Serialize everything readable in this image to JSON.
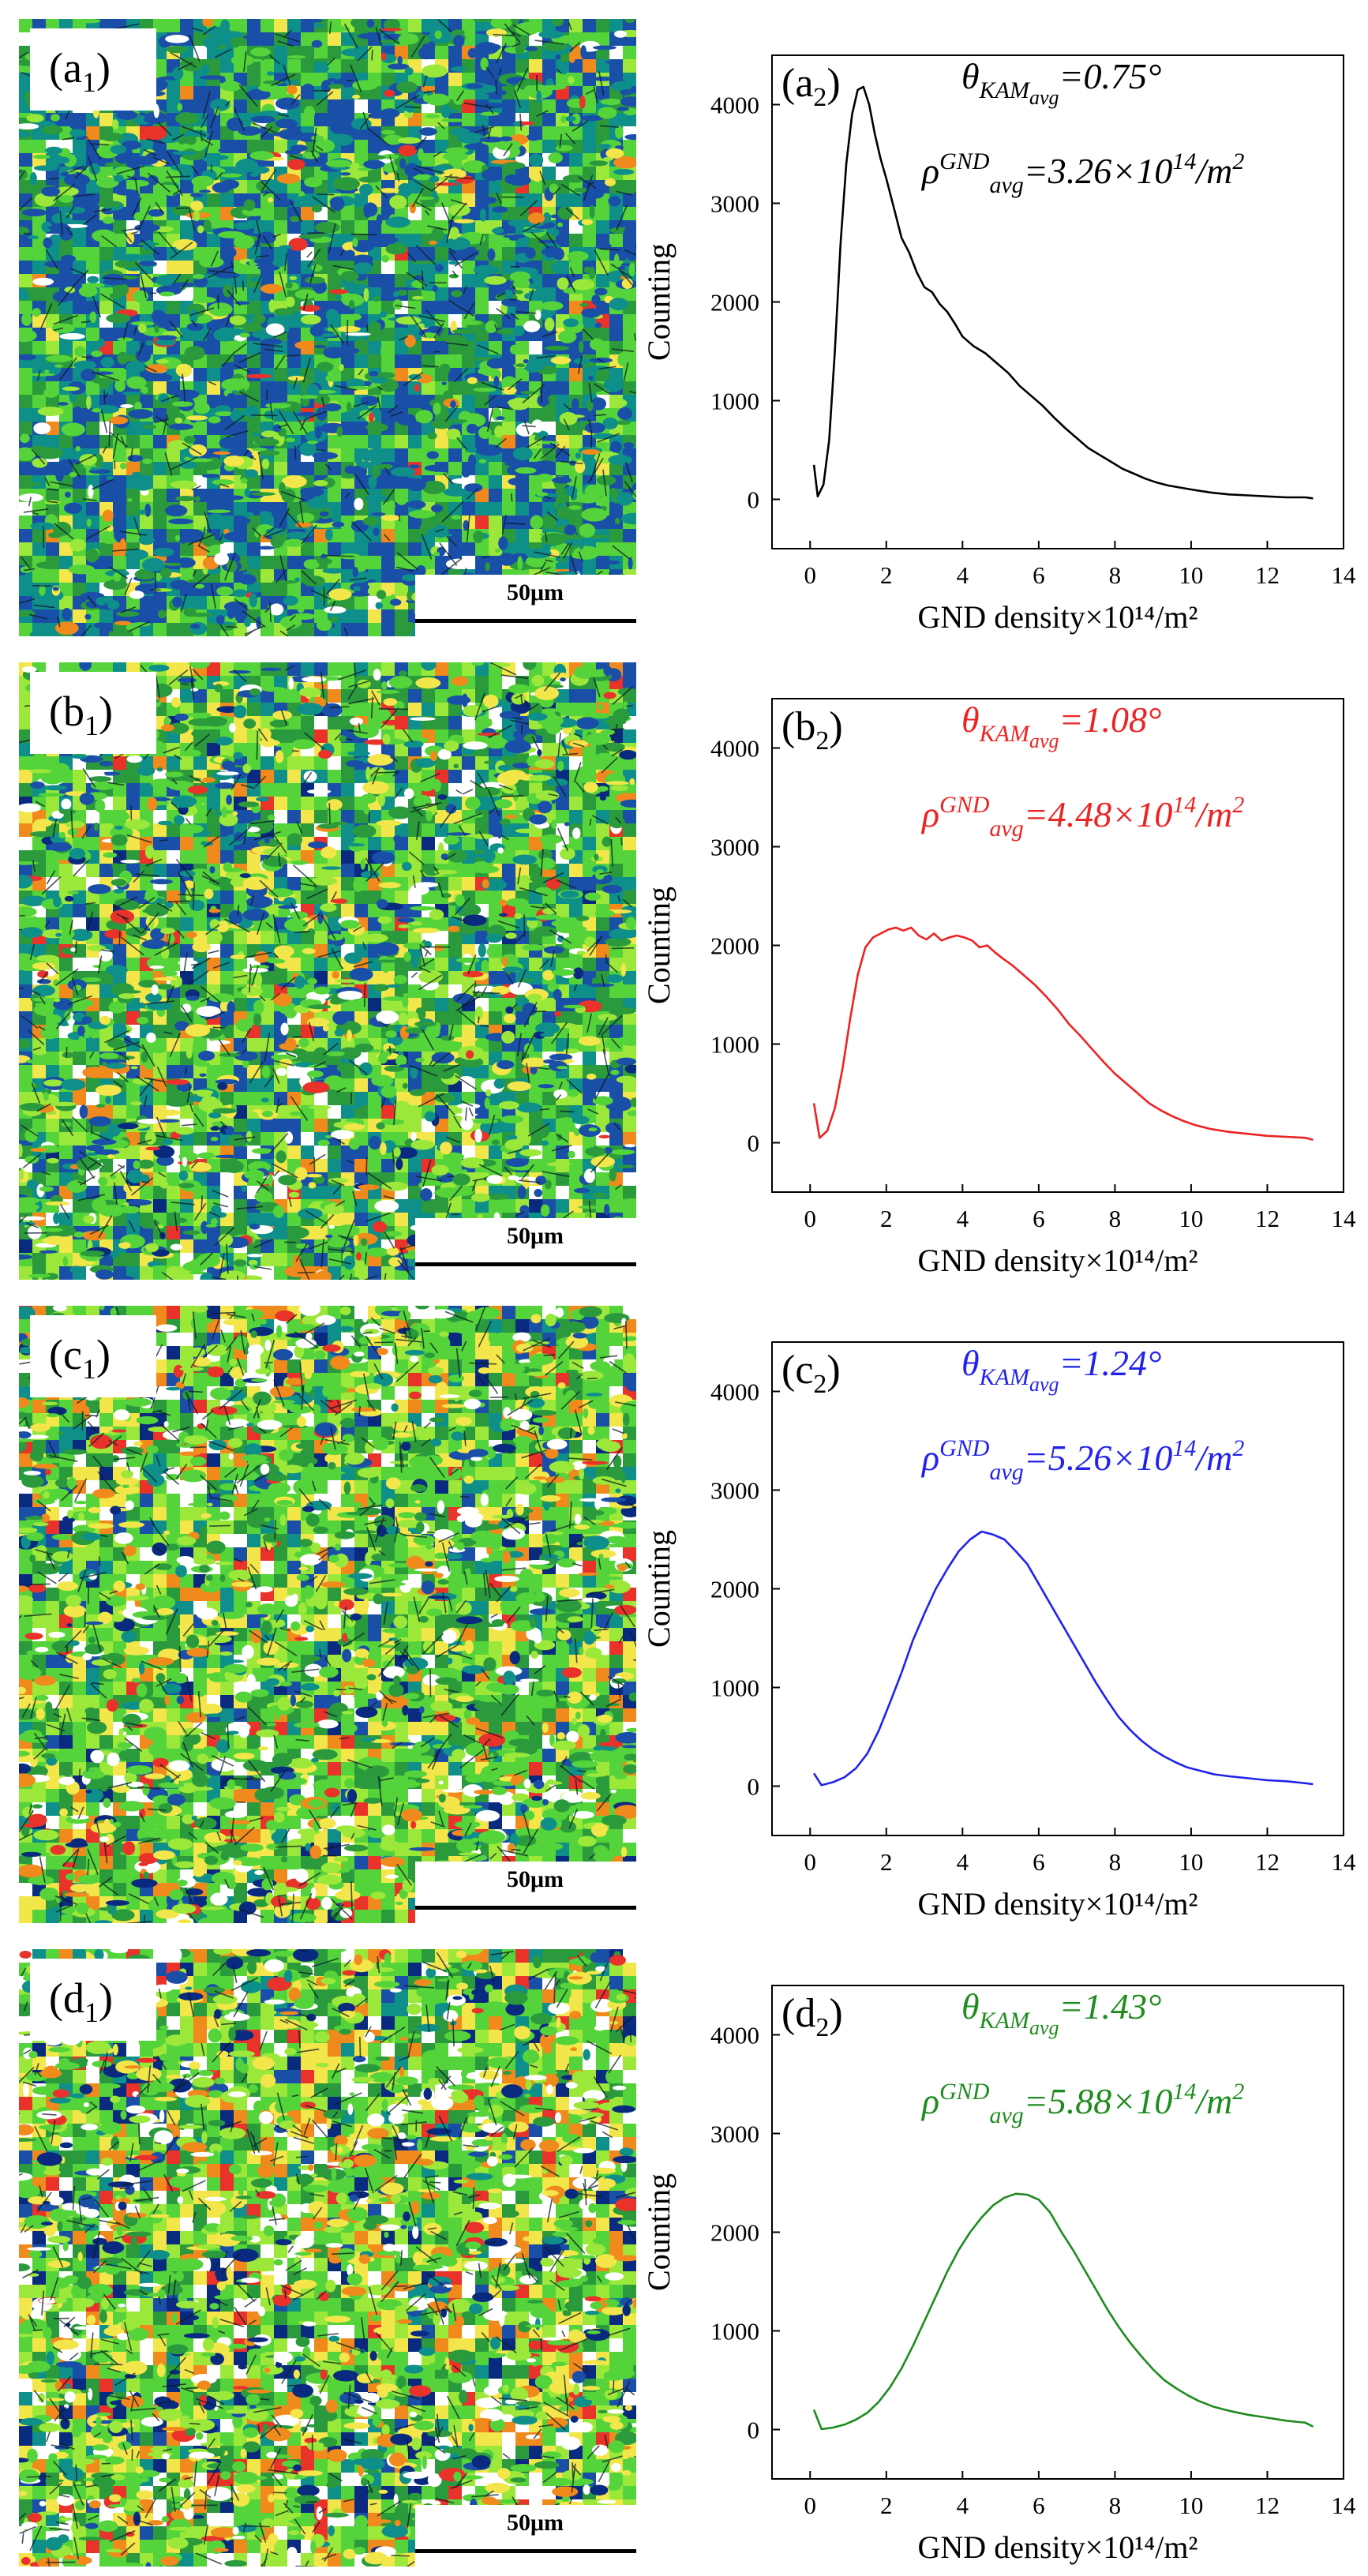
{
  "panels": [
    {
      "map_label": {
        "letter": "(a",
        "sub": "1",
        "close": ")"
      },
      "scale_bar": "50μm",
      "map_palette": {
        "base": "#2ec43a",
        "colors": [
          "#1a4fa8",
          "#0f8f8a",
          "#2a9a3c",
          "#55d33a",
          "#9be83a",
          "#f2e64a",
          "#f08a1c",
          "#e8322a",
          "#ffffff",
          "#0a2a80"
        ],
        "weights": [
          26,
          20,
          18,
          20,
          6,
          4,
          2,
          1,
          3,
          0
        ]
      },
      "chart_data": {
        "type": "line",
        "panel_label": {
          "letter": "(a",
          "sub": "2",
          "close": ")"
        },
        "color": "#000000",
        "xlabel": "GND density×10¹⁴/m²",
        "ylabel": "Counting",
        "xlim": [
          -1,
          14
        ],
        "ylim": [
          -500,
          4500
        ],
        "xticks": [
          0,
          2,
          4,
          6,
          8,
          10,
          12,
          14
        ],
        "yticks": [
          0,
          1000,
          2000,
          3000,
          4000
        ],
        "annotation_kam": {
          "sym": "θ",
          "sub": "KAM",
          "subsub": "avg",
          "value": "=0.75°"
        },
        "annotation_gnd": {
          "sym": "ρ",
          "sup": "GND",
          "sub": "avg",
          "value": "=3.26×10",
          "exp": "14",
          "unit": "/m",
          "unit_exp": "2"
        },
        "x": [
          0.1,
          0.2,
          0.35,
          0.5,
          0.65,
          0.8,
          0.95,
          1.1,
          1.25,
          1.4,
          1.55,
          1.7,
          1.85,
          2.0,
          2.2,
          2.4,
          2.6,
          2.8,
          3.0,
          3.2,
          3.4,
          3.6,
          3.8,
          4.0,
          4.3,
          4.6,
          4.9,
          5.2,
          5.5,
          5.8,
          6.1,
          6.4,
          6.7,
          7.0,
          7.3,
          7.6,
          7.9,
          8.2,
          8.5,
          8.8,
          9.1,
          9.4,
          9.7,
          10.0,
          10.5,
          11.0,
          11.5,
          12.0,
          12.5,
          13.0,
          13.2
        ],
        "y": [
          350,
          30,
          150,
          600,
          1500,
          2600,
          3400,
          3900,
          4150,
          4180,
          4000,
          3700,
          3450,
          3250,
          2950,
          2650,
          2500,
          2300,
          2150,
          2100,
          1980,
          1900,
          1780,
          1650,
          1550,
          1480,
          1380,
          1280,
          1150,
          1050,
          950,
          830,
          720,
          620,
          520,
          450,
          380,
          310,
          260,
          210,
          170,
          140,
          120,
          100,
          70,
          50,
          40,
          30,
          20,
          20,
          10
        ]
      }
    },
    {
      "map_label": {
        "letter": "(b",
        "sub": "1",
        "close": ")"
      },
      "scale_bar": "50μm",
      "map_palette": {
        "base": "#3cc83a",
        "colors": [
          "#1a4fa8",
          "#0f8f8a",
          "#2a9a3c",
          "#55d33a",
          "#9be83a",
          "#f2e64a",
          "#f08a1c",
          "#e8322a",
          "#ffffff",
          "#0a2a80"
        ],
        "weights": [
          10,
          12,
          16,
          24,
          12,
          8,
          4,
          2,
          8,
          2
        ]
      },
      "chart_data": {
        "type": "line",
        "panel_label": {
          "letter": "(b",
          "sub": "2",
          "close": ")"
        },
        "color": "#ee2222",
        "xlabel": "GND density×10¹⁴/m²",
        "ylabel": "Counting",
        "xlim": [
          -1,
          14
        ],
        "ylim": [
          -500,
          4500
        ],
        "xticks": [
          0,
          2,
          4,
          6,
          8,
          10,
          12,
          14
        ],
        "yticks": [
          0,
          1000,
          2000,
          3000,
          4000
        ],
        "annotation_kam": {
          "sym": "θ",
          "sub": "KAM",
          "subsub": "avg",
          "value": "=1.08°"
        },
        "annotation_gnd": {
          "sym": "ρ",
          "sup": "GND",
          "sub": "avg",
          "value": "=4.48×10",
          "exp": "14",
          "unit": "/m",
          "unit_exp": "2"
        },
        "x": [
          0.1,
          0.25,
          0.45,
          0.65,
          0.85,
          1.05,
          1.25,
          1.45,
          1.65,
          1.85,
          2.05,
          2.25,
          2.45,
          2.65,
          2.85,
          3.05,
          3.25,
          3.45,
          3.65,
          3.85,
          4.05,
          4.25,
          4.45,
          4.65,
          4.85,
          5.05,
          5.3,
          5.6,
          5.9,
          6.2,
          6.5,
          6.8,
          7.1,
          7.4,
          7.7,
          8.0,
          8.3,
          8.6,
          8.9,
          9.2,
          9.5,
          9.8,
          10.1,
          10.5,
          11.0,
          11.5,
          12.0,
          12.5,
          13.0,
          13.2
        ],
        "y": [
          400,
          50,
          120,
          350,
          750,
          1250,
          1700,
          1980,
          2080,
          2120,
          2160,
          2180,
          2150,
          2180,
          2100,
          2060,
          2120,
          2050,
          2080,
          2100,
          2080,
          2050,
          1980,
          2000,
          1930,
          1870,
          1800,
          1700,
          1600,
          1480,
          1350,
          1200,
          1080,
          950,
          820,
          700,
          600,
          500,
          400,
          330,
          270,
          220,
          180,
          140,
          110,
          90,
          70,
          60,
          50,
          30
        ]
      }
    },
    {
      "map_label": {
        "letter": "(c",
        "sub": "1",
        "close": ")"
      },
      "scale_bar": "50μm",
      "map_palette": {
        "base": "#44d03a",
        "colors": [
          "#1a4fa8",
          "#0f8f8a",
          "#2a9a3c",
          "#55d33a",
          "#9be83a",
          "#f2e64a",
          "#f08a1c",
          "#e8322a",
          "#ffffff",
          "#0a2a80"
        ],
        "weights": [
          4,
          6,
          14,
          26,
          14,
          10,
          6,
          3,
          10,
          4
        ]
      },
      "chart_data": {
        "type": "line",
        "panel_label": {
          "letter": "(c",
          "sub": "2",
          "close": ")"
        },
        "color": "#2222ee",
        "xlabel": "GND density×10¹⁴/m²",
        "ylabel": "Counting",
        "xlim": [
          -1,
          14
        ],
        "ylim": [
          -500,
          4500
        ],
        "xticks": [
          0,
          2,
          4,
          6,
          8,
          10,
          12,
          14
        ],
        "yticks": [
          0,
          1000,
          2000,
          3000,
          4000
        ],
        "annotation_kam": {
          "sym": "θ",
          "sub": "KAM",
          "subsub": "avg",
          "value": "=1.24°"
        },
        "annotation_gnd": {
          "sym": "ρ",
          "sup": "GND",
          "sub": "avg",
          "value": "=5.26×10",
          "exp": "14",
          "unit": "/m",
          "unit_exp": "2"
        },
        "x": [
          0.1,
          0.3,
          0.6,
          0.9,
          1.2,
          1.5,
          1.8,
          2.1,
          2.4,
          2.7,
          3.0,
          3.3,
          3.6,
          3.9,
          4.2,
          4.5,
          4.8,
          5.1,
          5.4,
          5.7,
          6.0,
          6.3,
          6.6,
          6.9,
          7.2,
          7.5,
          7.8,
          8.1,
          8.4,
          8.7,
          9.0,
          9.3,
          9.6,
          9.9,
          10.2,
          10.6,
          11.0,
          11.5,
          12.0,
          12.5,
          13.0,
          13.2
        ],
        "y": [
          130,
          10,
          40,
          90,
          180,
          330,
          560,
          850,
          1150,
          1480,
          1750,
          2000,
          2200,
          2380,
          2500,
          2580,
          2550,
          2500,
          2380,
          2250,
          2050,
          1850,
          1650,
          1450,
          1250,
          1050,
          870,
          700,
          570,
          460,
          370,
          300,
          240,
          190,
          160,
          120,
          100,
          80,
          60,
          50,
          30,
          20
        ]
      }
    },
    {
      "map_label": {
        "letter": "(d",
        "sub": "1",
        "close": ")"
      },
      "scale_bar": "50μm",
      "map_palette": {
        "base": "#46d23a",
        "colors": [
          "#1a4fa8",
          "#0f8f8a",
          "#2a9a3c",
          "#55d33a",
          "#9be83a",
          "#f2e64a",
          "#f08a1c",
          "#e8322a",
          "#ffffff",
          "#0a2a80"
        ],
        "weights": [
          3,
          4,
          12,
          24,
          14,
          12,
          8,
          4,
          13,
          6
        ]
      },
      "chart_data": {
        "type": "line",
        "panel_label": {
          "letter": "(d",
          "sub": "2",
          "close": ")"
        },
        "color": "#1e8c1e",
        "xlabel": "GND density×10¹⁴/m²",
        "ylabel": "Counting",
        "xlim": [
          -1,
          14
        ],
        "ylim": [
          -500,
          4500
        ],
        "xticks": [
          0,
          2,
          4,
          6,
          8,
          10,
          12,
          14
        ],
        "yticks": [
          0,
          1000,
          2000,
          3000,
          4000
        ],
        "annotation_kam": {
          "sym": "θ",
          "sub": "KAM",
          "subsub": "avg",
          "value": "=1.43°"
        },
        "annotation_gnd": {
          "sym": "ρ",
          "sup": "GND",
          "sub": "avg",
          "value": "=5.88×10",
          "exp": "14",
          "unit": "/m",
          "unit_exp": "2"
        },
        "x": [
          0.1,
          0.3,
          0.6,
          0.9,
          1.2,
          1.5,
          1.8,
          2.1,
          2.4,
          2.7,
          3.0,
          3.3,
          3.6,
          3.9,
          4.2,
          4.5,
          4.8,
          5.1,
          5.4,
          5.7,
          6.0,
          6.3,
          6.6,
          6.9,
          7.2,
          7.5,
          7.8,
          8.1,
          8.4,
          8.7,
          9.0,
          9.3,
          9.6,
          9.9,
          10.2,
          10.6,
          11.0,
          11.5,
          12.0,
          12.5,
          13.0,
          13.2
        ],
        "y": [
          200,
          5,
          20,
          50,
          100,
          170,
          280,
          430,
          620,
          850,
          1100,
          1350,
          1600,
          1820,
          2000,
          2150,
          2270,
          2350,
          2390,
          2380,
          2330,
          2200,
          2000,
          1820,
          1620,
          1420,
          1220,
          1040,
          880,
          740,
          610,
          500,
          420,
          350,
          290,
          230,
          190,
          150,
          120,
          90,
          70,
          30
        ]
      }
    }
  ]
}
